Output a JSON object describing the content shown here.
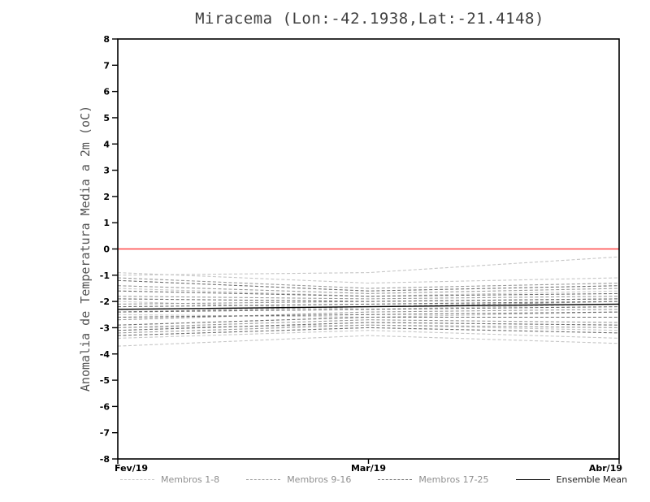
{
  "title": "Miracema (Lon:-42.1938,Lat:-21.4148)",
  "chart_data": {
    "type": "line",
    "title": "Miracema (Lon:-42.1938,Lat:-21.4148)",
    "xlabel": "",
    "ylabel": "Anomalia de Temperatura Media a 2m (oC)",
    "x_categories": [
      "Fev/19",
      "Mar/19",
      "Abr/19"
    ],
    "ylim": [
      -8,
      8
    ],
    "ytick_step": 1,
    "grid": false,
    "zero_line_color": "#ff4545",
    "frame_color": "#000000",
    "legend_position": "bottom",
    "groups": [
      {
        "name": "Membros 1-8",
        "color": "#c6c6c6",
        "style": "dashed",
        "series": [
          [
            -1.0,
            -0.9,
            -0.3
          ],
          [
            -0.9,
            -1.3,
            -1.1
          ],
          [
            -1.5,
            -1.8,
            -1.6
          ],
          [
            -2.0,
            -2.3,
            -2.1
          ],
          [
            -2.5,
            -2.6,
            -2.4
          ],
          [
            -3.0,
            -2.9,
            -3.1
          ],
          [
            -3.4,
            -3.1,
            -3.4
          ],
          [
            -3.7,
            -3.3,
            -3.6
          ]
        ]
      },
      {
        "name": "Membros 9-16",
        "color": "#9a9a9a",
        "style": "dashed",
        "series": [
          [
            -1.1,
            -1.5,
            -1.3
          ],
          [
            -1.4,
            -1.7,
            -1.5
          ],
          [
            -1.8,
            -1.9,
            -1.8
          ],
          [
            -2.1,
            -2.0,
            -1.9
          ],
          [
            -2.4,
            -2.2,
            -2.0
          ],
          [
            -2.7,
            -2.4,
            -2.3
          ],
          [
            -3.0,
            -2.7,
            -2.8
          ],
          [
            -3.2,
            -2.9,
            -3.0
          ]
        ]
      },
      {
        "name": "Membros 17-25",
        "color": "#6e6e6e",
        "style": "dashed",
        "series": [
          [
            -1.2,
            -1.6,
            -1.4
          ],
          [
            -1.6,
            -1.8,
            -1.7
          ],
          [
            -1.9,
            -2.0,
            -1.9
          ],
          [
            -2.2,
            -2.1,
            -2.0
          ],
          [
            -2.4,
            -2.3,
            -2.2
          ],
          [
            -2.6,
            -2.5,
            -2.4
          ],
          [
            -2.9,
            -2.6,
            -2.6
          ],
          [
            -3.1,
            -2.8,
            -2.9
          ],
          [
            -3.3,
            -3.0,
            -3.2
          ]
        ]
      },
      {
        "name": "Ensemble Mean",
        "color": "#000000",
        "style": "solid",
        "series": [
          [
            -2.3,
            -2.2,
            -2.1
          ]
        ]
      }
    ],
    "legend": [
      "Membros 1-8",
      "Membros 9-16",
      "Membros 17-25",
      "Ensemble Mean"
    ]
  }
}
